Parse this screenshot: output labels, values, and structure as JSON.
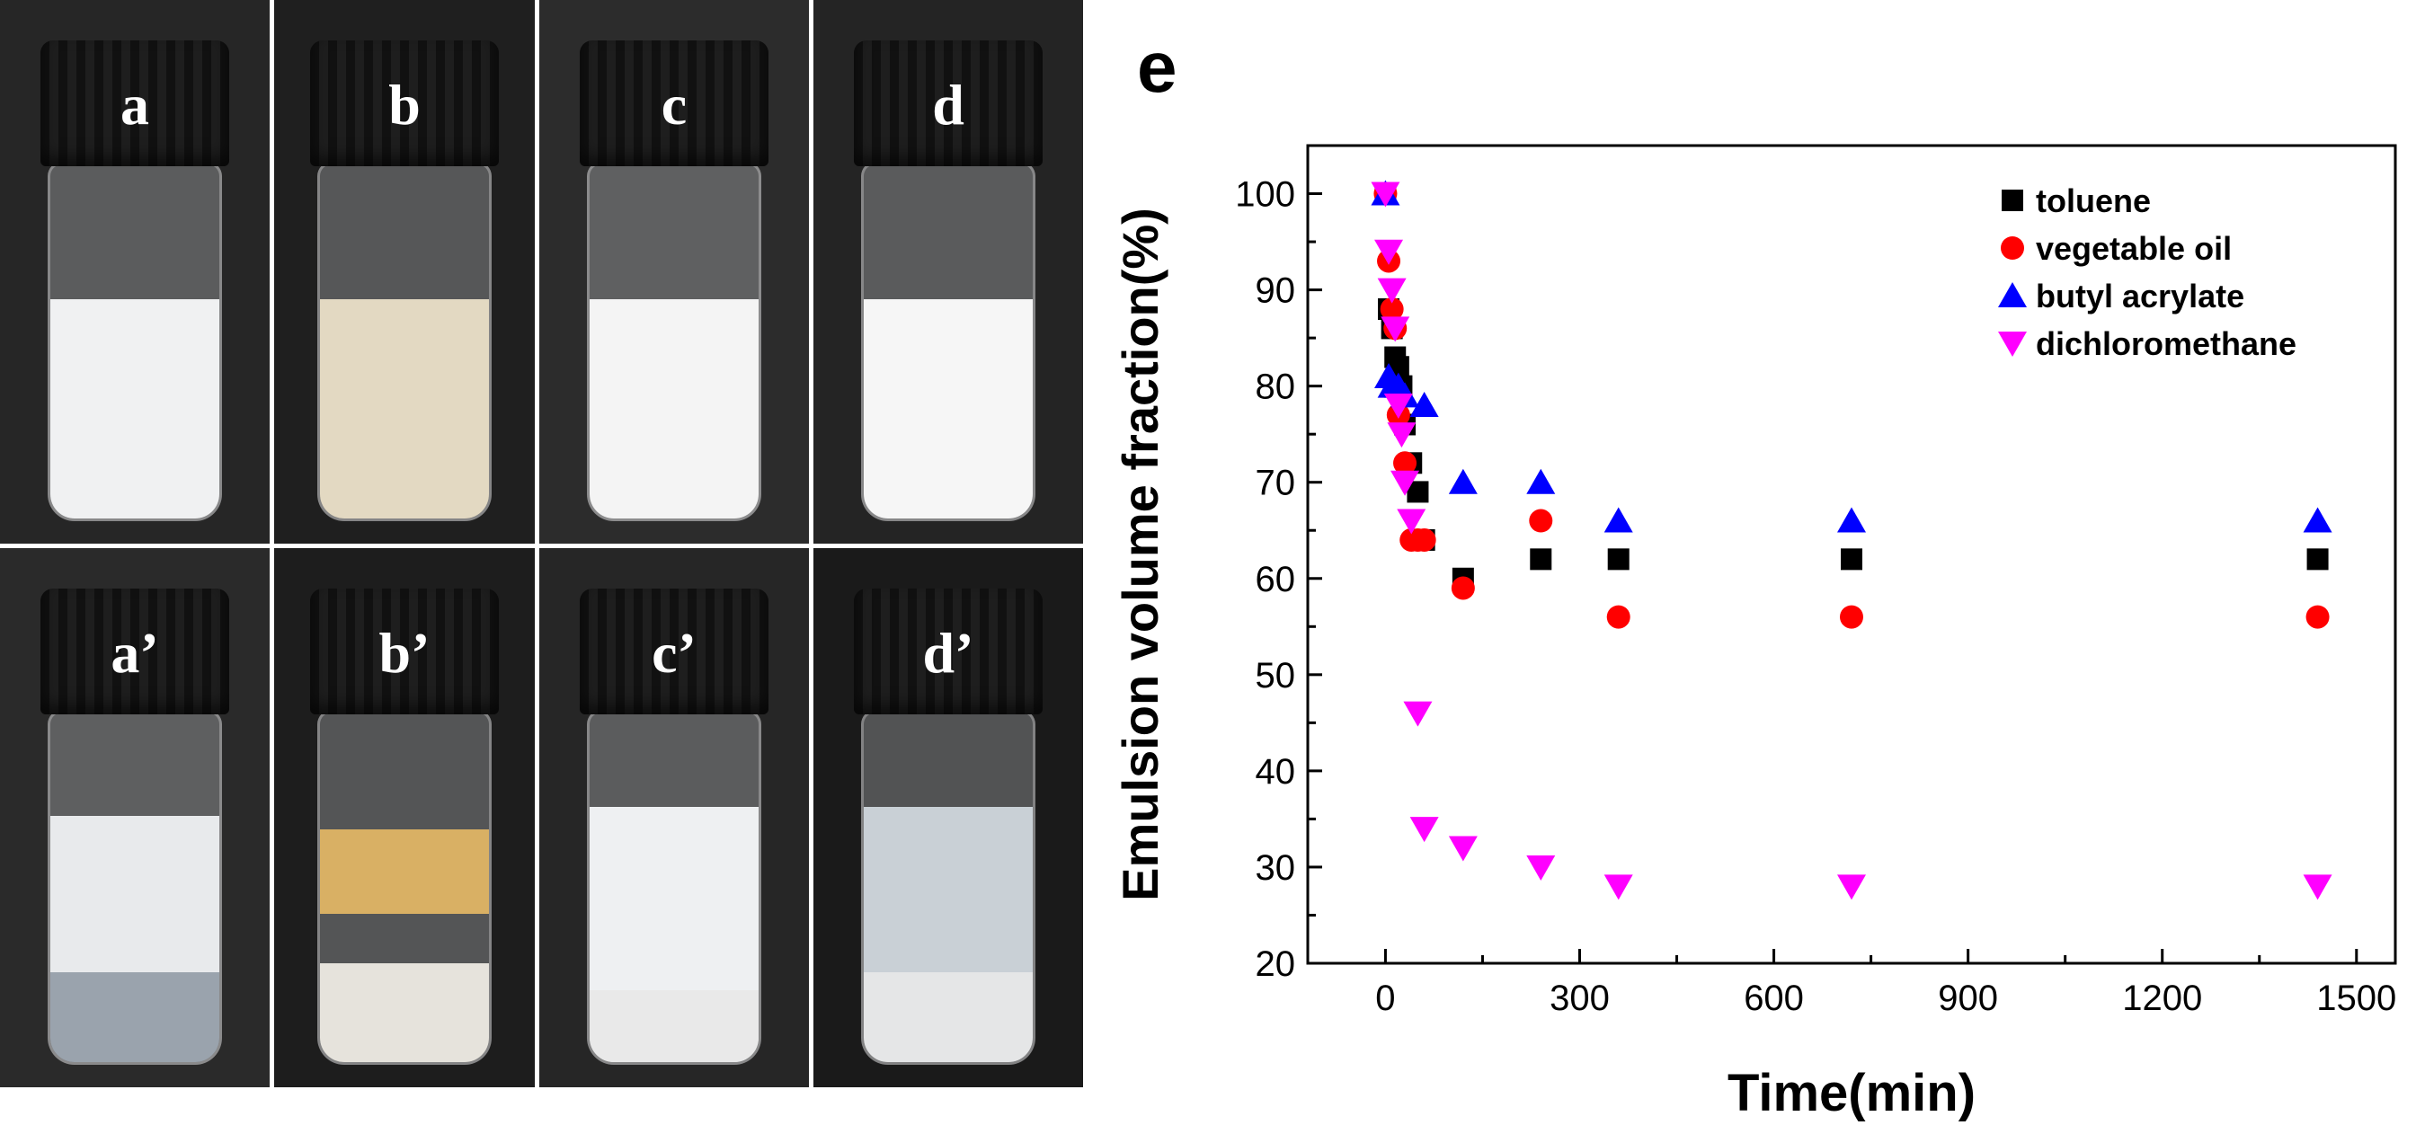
{
  "photo_panels": [
    {
      "label": "a",
      "liquid_colors": [
        "#f0f1f2"
      ]
    },
    {
      "label": "b",
      "liquid_colors": [
        "#e3d9c2"
      ]
    },
    {
      "label": "c",
      "liquid_colors": [
        "#f4f4f4"
      ]
    },
    {
      "label": "d",
      "liquid_colors": [
        "#f6f6f6"
      ]
    },
    {
      "label": "a’",
      "liquid_colors": [
        "#e8eaec",
        "#9aa3ad"
      ]
    },
    {
      "label": "b’",
      "liquid_colors": [
        "#d9b064",
        "#e6e3dc"
      ]
    },
    {
      "label": "c’",
      "liquid_colors": [
        "#eef0f2",
        "#e9e9e9"
      ]
    },
    {
      "label": "d’",
      "liquid_colors": [
        "#c9d0d6",
        "#e5e6e7"
      ]
    }
  ],
  "chart_data": {
    "type": "scatter",
    "panel_label": "e",
    "xlabel": "Time(min)",
    "ylabel": "Emulsion volume fraction(%)",
    "xlim": [
      -120,
      1560
    ],
    "ylim": [
      20,
      105
    ],
    "xticks": [
      0,
      300,
      600,
      900,
      1200,
      1500
    ],
    "yticks": [
      20,
      30,
      40,
      50,
      60,
      70,
      80,
      90,
      100
    ],
    "legend_position": "top-right",
    "series": [
      {
        "name": "toluene",
        "marker": "square",
        "color": "#000000",
        "x": [
          0,
          5,
          10,
          15,
          20,
          25,
          30,
          40,
          50,
          60,
          120,
          240,
          360,
          720,
          1440
        ],
        "y": [
          100,
          88,
          86,
          83,
          82,
          80,
          76,
          72,
          69,
          64,
          60,
          62,
          62,
          62,
          62
        ]
      },
      {
        "name": "vegetable oil",
        "marker": "circle",
        "color": "#ff0000",
        "x": [
          0,
          5,
          10,
          15,
          20,
          30,
          40,
          50,
          60,
          120,
          240,
          360,
          720,
          1440
        ],
        "y": [
          100,
          93,
          88,
          86,
          77,
          72,
          64,
          64,
          64,
          59,
          66,
          56,
          56,
          56
        ]
      },
      {
        "name": "butyl acrylate",
        "marker": "triangle-up",
        "color": "#0000ff",
        "x": [
          0,
          5,
          10,
          20,
          30,
          60,
          120,
          240,
          360,
          720,
          1440
        ],
        "y": [
          100,
          81,
          80,
          80,
          79,
          78,
          70,
          70,
          66,
          66,
          66
        ]
      },
      {
        "name": "dichloromethane",
        "marker": "triangle-down",
        "color": "#ff00ff",
        "x": [
          0,
          5,
          10,
          15,
          20,
          25,
          30,
          40,
          50,
          60,
          120,
          240,
          360,
          720,
          1440
        ],
        "y": [
          100,
          94,
          90,
          86,
          78,
          75,
          70,
          66,
          46,
          34,
          32,
          30,
          28,
          28,
          28
        ]
      }
    ]
  }
}
